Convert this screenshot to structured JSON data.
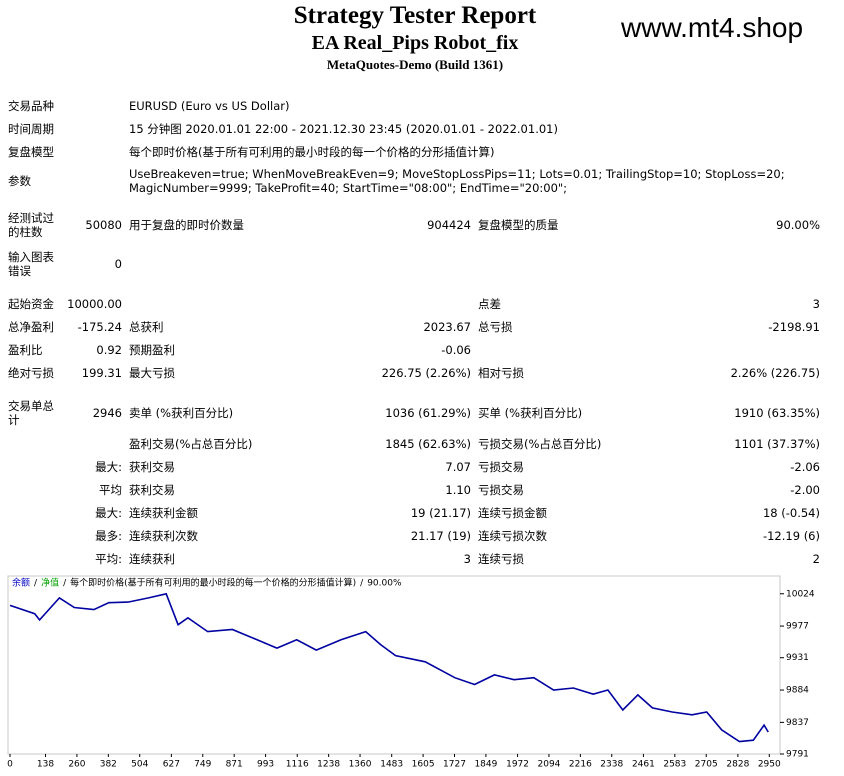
{
  "header": {
    "title": "Strategy Tester Report",
    "subtitle": "EA Real_Pips Robot_fix",
    "server": "MetaQuotes-Demo (Build 1361)",
    "watermark": "www.mt4.shop"
  },
  "info": [
    {
      "label": "交易品种",
      "value": [
        "EURUSD (Euro vs US Dollar)"
      ]
    },
    {
      "label": "时间周期",
      "value": [
        "15 分钟图 2020.01.01 22:00 - 2021.12.30 23:45 (2020.01.01 - 2022.01.01)"
      ]
    },
    {
      "label": "复盘模型",
      "value": [
        "每个即时价格(基于所有可利用的最小时段的每一个价格的分形插值计算)"
      ]
    },
    {
      "label": "参数",
      "value": [
        "UseBreakeven=true; WhenMoveBreakEven=9; MoveStopLossPips=11; Lots=0.01; TrailingStop=10; StopLoss=20;",
        "MagicNumber=9999; TakeProfit=40; StartTime=\"08:00\"; EndTime=\"20:00\";"
      ]
    }
  ],
  "stats": [
    [
      "经测试过的柱数",
      "50080",
      "用于复盘的即时价数量",
      "904424",
      "复盘模型的质量",
      "90.00%"
    ],
    [
      "输入图表错误",
      "0",
      null,
      null,
      null,
      null
    ],
    [
      "起始资金",
      "10000.00",
      null,
      null,
      "点差",
      "3"
    ],
    [
      "总净盈利",
      "-175.24",
      "总获利",
      "2023.67",
      "总亏损",
      "-2198.91"
    ],
    [
      "盈利比",
      "0.92",
      "预期盈利",
      "-0.06",
      null,
      null
    ],
    [
      "绝对亏损",
      "199.31",
      "最大亏损",
      "226.75 (2.26%)",
      "相对亏损",
      "2.26% (226.75)"
    ],
    [
      "交易单总计",
      "2946",
      "卖单 (%获利百分比)",
      "1036 (61.29%)",
      "买单 (%获利百分比)",
      "1910 (63.35%)"
    ],
    [
      null,
      null,
      "盈利交易(%占总百分比)",
      "1845 (62.63%)",
      "亏损交易(%占总百分比)",
      "1101 (37.37%)"
    ],
    [
      null,
      "最大:",
      "获利交易",
      "7.07",
      "亏损交易",
      "-2.06"
    ],
    [
      null,
      "平均",
      "获利交易",
      "1.10",
      "亏损交易",
      "-2.00"
    ],
    [
      null,
      "最大:",
      "连续获利金额",
      "19 (21.17)",
      "连续亏损金额",
      "18 (-0.54)"
    ],
    [
      null,
      "最多:",
      "连续获利次数",
      "21.17 (19)",
      "连续亏损次数",
      "-12.19 (6)"
    ],
    [
      null,
      "平均:",
      "连续获利",
      "3",
      "连续亏损",
      "2"
    ]
  ],
  "chart_data": {
    "type": "line",
    "legend": [
      {
        "text": "余额",
        "color": "#0000c0"
      },
      {
        "text": "净值",
        "color": "#00a000"
      }
    ],
    "separator": "/",
    "model": "每个即时价格(基于所有可利用的最小时段的每一个价格的分形插值计算)",
    "quality": "90.00%",
    "x": [
      0,
      96,
      115,
      192,
      250,
      326,
      384,
      461,
      538,
      607,
      653,
      691,
      768,
      864,
      960,
      1037,
      1114,
      1190,
      1286,
      1382,
      1440,
      1498,
      1613,
      1728,
      1805,
      1882,
      1958,
      2035,
      2112,
      2189,
      2266,
      2323,
      2381,
      2439,
      2496,
      2573,
      2650,
      2707,
      2765,
      2834,
      2888,
      2930,
      2946
    ],
    "series": [
      {
        "name": "余额",
        "color": "#0000a0",
        "values": [
          10007,
          9995,
          9986,
          10018,
          10004,
          10001,
          10011,
          10012,
          10018,
          10024,
          9979,
          9989,
          9969,
          9972,
          9957,
          9945,
          9957,
          9942,
          9957,
          9969,
          9950,
          9934,
          9925,
          9902,
          9892,
          9906,
          9899,
          9902,
          9884,
          9887,
          9878,
          9884,
          9855,
          9877,
          9858,
          9852,
          9848,
          9852,
          9826,
          9809,
          9811,
          9833,
          9823
        ]
      }
    ],
    "xlim": [
      0,
      2980
    ],
    "ylim": [
      9791,
      10028
    ],
    "xticks": [
      0,
      138,
      260,
      382,
      504,
      627,
      749,
      871,
      993,
      1116,
      1238,
      1360,
      1483,
      1605,
      1727,
      1849,
      1972,
      2094,
      2216,
      2338,
      2461,
      2583,
      2705,
      2828,
      2950
    ],
    "yticks": [
      9791,
      9837,
      9884,
      9931,
      9977,
      10024
    ]
  }
}
